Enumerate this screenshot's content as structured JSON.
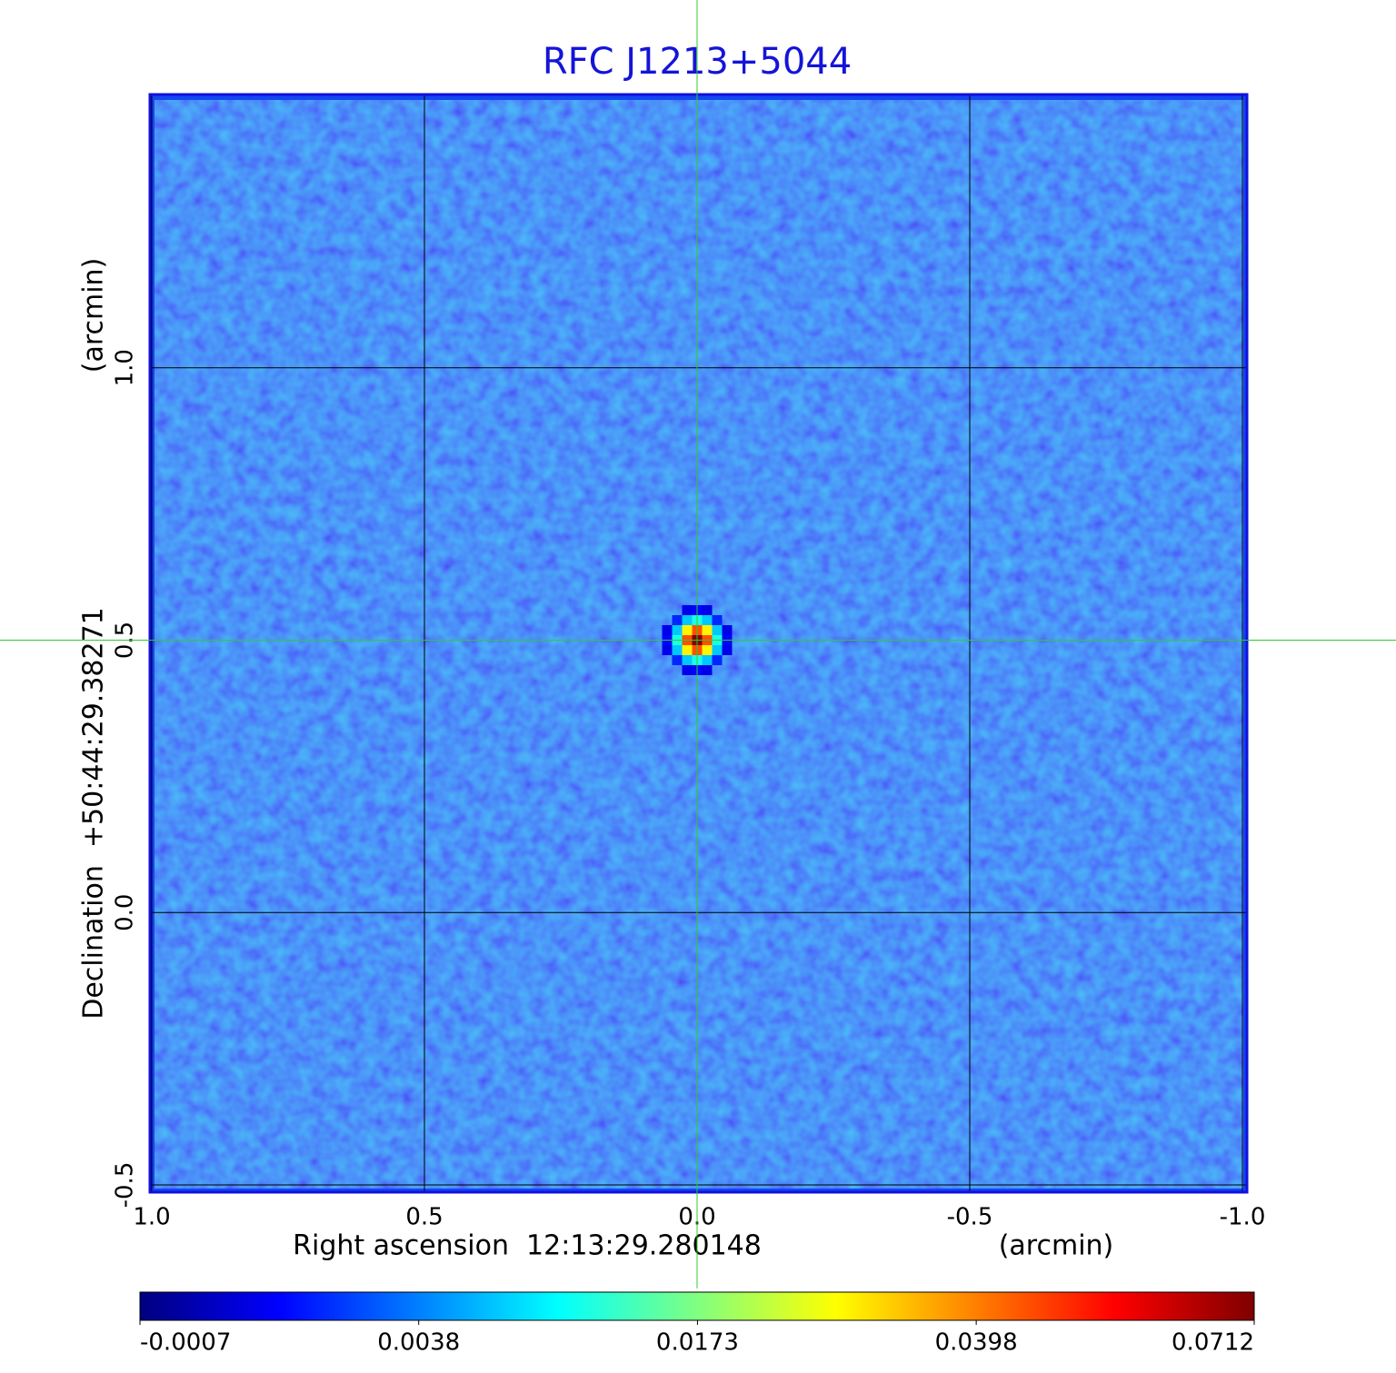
{
  "chart_data": {
    "type": "image",
    "title": "RFC J1213+5044",
    "xlabel": "Right ascension  12:13:29.280148",
    "xunit": "(arcmin)",
    "ylabel": "Declination  +50:44:29.38271",
    "yunit": "(arcmin)",
    "xlim": [
      1,
      -1
    ],
    "xticks": [
      {
        "value": 1,
        "label": "1.0"
      },
      0.5,
      {
        "value": 0,
        "label": "0.0"
      },
      -0.5,
      {
        "value": -1,
        "label": "-1.0"
      }
    ],
    "ylim": [
      -0.51,
      1.5
    ],
    "yticks": [
      -0.5,
      {
        "value": 0,
        "label": "0.0"
      },
      0.5,
      {
        "value": 1,
        "label": "1.0"
      }
    ],
    "grid": true,
    "colormap": "jet",
    "source": {
      "x": 0,
      "y": 0.5,
      "peak": 0.0712
    },
    "colorbar": {
      "scale": "sqrt",
      "lim": [
        -0.0007,
        0.0712
      ],
      "ticks": [
        -0.0007,
        0.0038,
        0.0173,
        0.0398,
        0.0712
      ]
    }
  }
}
